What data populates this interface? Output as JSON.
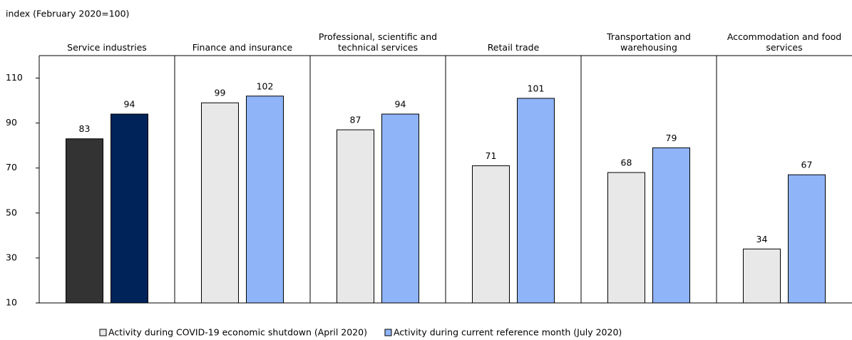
{
  "chart_data": {
    "type": "bar",
    "y_label": "index (February 2020=100)",
    "categories": [
      "Service industries",
      "Finance and insurance",
      "Professional, scientific and technical services",
      "Retail trade",
      "Transportation and warehousing",
      "Accommodation and food services"
    ],
    "series": [
      {
        "name": "Activity during COVID-19 economic shutdown (April 2020)",
        "color": "#e8e8e8",
        "colors": [
          "#333333",
          "#e8e8e8",
          "#e8e8e8",
          "#e8e8e8",
          "#e8e8e8",
          "#e8e8e8"
        ],
        "values": [
          83,
          99,
          87,
          71,
          68,
          34
        ]
      },
      {
        "name": "Activity during current reference month (July 2020)",
        "color": "#8fb4f8",
        "colors": [
          "#00235a",
          "#8fb4f8",
          "#8fb4f8",
          "#8fb4f8",
          "#8fb4f8",
          "#8fb4f8"
        ],
        "values": [
          94,
          102,
          94,
          101,
          79,
          67
        ]
      }
    ],
    "ylim": [
      10,
      120
    ],
    "yticks": [
      10,
      30,
      50,
      70,
      90,
      110
    ]
  }
}
